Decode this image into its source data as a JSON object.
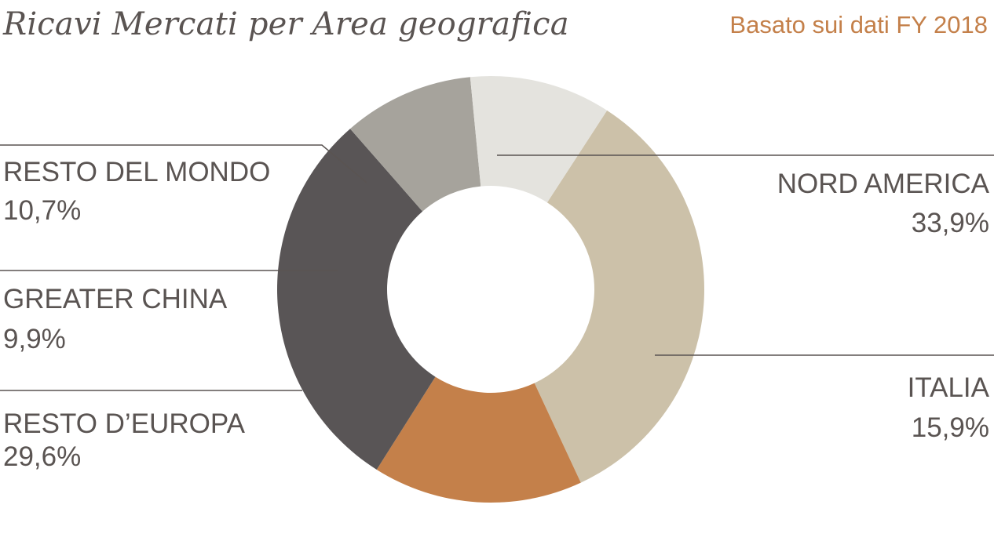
{
  "chart_data": {
    "type": "pie",
    "title": "Ricavi Mercati per Area geografica",
    "subtitle": "Basato sui dati FY 2018",
    "slices": [
      {
        "label": "NORD AMERICA",
        "value": 33.9,
        "value_label": "33,9%",
        "color": "#ccc1a9"
      },
      {
        "label": "ITALIA",
        "value": 15.9,
        "value_label": "15,9%",
        "color": "#c4804a"
      },
      {
        "label": "RESTO D’EUROPA",
        "value": 29.6,
        "value_label": "29,6%",
        "color": "#595556"
      },
      {
        "label": "GREATER CHINA",
        "value": 9.9,
        "value_label": "9,9%",
        "color": "#a6a39c"
      },
      {
        "label": "RESTO DEL MONDO",
        "value": 10.7,
        "value_label": "10,7%",
        "color": "#e4e3de"
      }
    ]
  }
}
